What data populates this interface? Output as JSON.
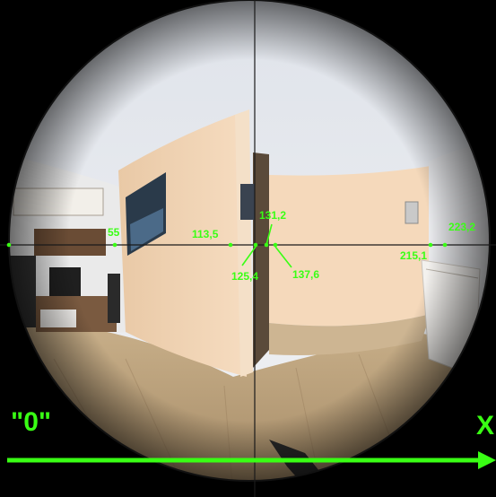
{
  "colors": {
    "marker": "#39ff14",
    "crosshair": "#1a1a1a",
    "frame": "#000000"
  },
  "measurements": [
    {
      "label": "55"
    },
    {
      "label": "113,5"
    },
    {
      "label": "131,2"
    },
    {
      "label": "125,4"
    },
    {
      "label": "137,6"
    },
    {
      "label": "215,1"
    },
    {
      "label": "223,2"
    }
  ],
  "axis": {
    "origin_label": "\"0\"",
    "end_label": "X"
  }
}
